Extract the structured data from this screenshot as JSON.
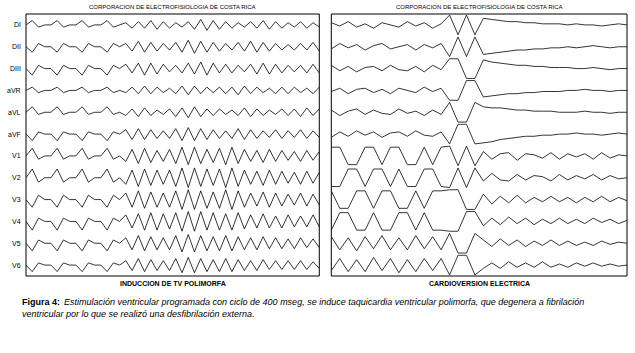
{
  "chart_data": [
    {
      "type": "line",
      "title": "CORPORACION DE ELECTROFISIOLOGIA DE COSTA RICA",
      "xlabel": "INDUCCION DE TV POLIMORFA",
      "color": "#000000",
      "tick_labels": false,
      "grid": false,
      "x": [
        0,
        1,
        2,
        3,
        4,
        5,
        6,
        7,
        8,
        9,
        10,
        11,
        12,
        13,
        14,
        15,
        16,
        17,
        18,
        19,
        20,
        21,
        22,
        23,
        24,
        25,
        26,
        27,
        28,
        29,
        30,
        31,
        32,
        33,
        34,
        35,
        36,
        37,
        38,
        39,
        40,
        41,
        42,
        43,
        44,
        45,
        46,
        47
      ],
      "xlim": [
        0,
        47
      ],
      "ylim": [
        -10,
        10
      ],
      "series": [
        {
          "name": "DI",
          "values": [
            0,
            4,
            -2,
            0,
            0,
            4,
            -2,
            0,
            0,
            4,
            -2,
            0,
            0,
            4,
            -2,
            0,
            2,
            -3,
            3,
            -3,
            4,
            -4,
            3,
            -3,
            2,
            -2,
            3,
            -4,
            5,
            -5,
            4,
            -4,
            3,
            -3,
            2,
            -2,
            3,
            -3,
            4,
            -4,
            3,
            -3,
            2,
            -2,
            3,
            -3,
            2,
            -2
          ]
        },
        {
          "name": "DII",
          "values": [
            0,
            -5,
            3,
            0,
            0,
            -5,
            3,
            0,
            0,
            -5,
            3,
            0,
            0,
            -5,
            3,
            0,
            3,
            -4,
            5,
            -5,
            4,
            -4,
            3,
            -3,
            4,
            -5,
            6,
            -6,
            5,
            -5,
            4,
            -4,
            3,
            -3,
            4,
            -4,
            5,
            -5,
            4,
            -4,
            3,
            -3,
            2,
            -3,
            3,
            -3,
            4,
            -4
          ]
        },
        {
          "name": "DIII",
          "values": [
            0,
            -6,
            3,
            0,
            0,
            -6,
            3,
            0,
            0,
            -6,
            3,
            0,
            0,
            -6,
            3,
            0,
            4,
            -4,
            5,
            -6,
            5,
            -5,
            4,
            -3,
            3,
            -4,
            5,
            -5,
            6,
            -6,
            5,
            -4,
            4,
            -4,
            3,
            -3,
            4,
            -5,
            5,
            -5,
            4,
            -4,
            3,
            -3,
            3,
            -4,
            4,
            -4
          ]
        },
        {
          "name": "aVR",
          "values": [
            0,
            3,
            -2,
            0,
            0,
            3,
            -2,
            0,
            0,
            3,
            -2,
            0,
            0,
            3,
            -2,
            0,
            -2,
            3,
            -3,
            4,
            -3,
            3,
            -2,
            2,
            -3,
            4,
            -4,
            4,
            -3,
            3,
            -2,
            3,
            -3,
            3,
            -4,
            4,
            -3,
            3,
            -2,
            2,
            -3,
            3,
            -3,
            3,
            -2,
            2,
            -3,
            3
          ]
        },
        {
          "name": "aVL",
          "values": [
            0,
            5,
            -2,
            0,
            0,
            5,
            -2,
            0,
            0,
            5,
            -2,
            0,
            0,
            5,
            -2,
            0,
            -3,
            3,
            -4,
            4,
            -3,
            2,
            -2,
            3,
            -4,
            4,
            -5,
            5,
            -4,
            3,
            -3,
            3,
            -2,
            2,
            -3,
            4,
            -4,
            3,
            -3,
            2,
            -2,
            3,
            -3,
            3,
            -4,
            4,
            -3,
            3
          ]
        },
        {
          "name": "aVF",
          "values": [
            0,
            -6,
            2,
            0,
            0,
            -6,
            2,
            0,
            0,
            -6,
            2,
            0,
            0,
            -6,
            2,
            0,
            4,
            -5,
            5,
            -5,
            4,
            -4,
            3,
            -4,
            5,
            -6,
            6,
            -6,
            5,
            -5,
            4,
            -4,
            3,
            -4,
            5,
            -5,
            4,
            -4,
            3,
            -3,
            4,
            -4,
            3,
            -3,
            4,
            -4,
            3,
            -3
          ]
        },
        {
          "name": "V1",
          "values": [
            0,
            7,
            -3,
            0,
            0,
            7,
            -3,
            0,
            0,
            7,
            -3,
            0,
            0,
            7,
            -3,
            0,
            -5,
            6,
            -7,
            7,
            -6,
            5,
            -5,
            6,
            -7,
            8,
            -8,
            8,
            -7,
            6,
            -6,
            7,
            -8,
            8,
            -7,
            6,
            -5,
            5,
            -6,
            6,
            -5,
            5,
            -4,
            4,
            -5,
            5,
            -4,
            4
          ]
        },
        {
          "name": "V2",
          "values": [
            0,
            8,
            -4,
            0,
            0,
            8,
            -4,
            0,
            0,
            8,
            -4,
            0,
            0,
            8,
            -4,
            0,
            -6,
            7,
            -8,
            8,
            -7,
            7,
            -6,
            7,
            -8,
            9,
            -9,
            9,
            -8,
            8,
            -7,
            8,
            -9,
            9,
            -8,
            7,
            -6,
            6,
            -7,
            7,
            -6,
            6,
            -5,
            5,
            -6,
            6,
            -5,
            5
          ]
        },
        {
          "name": "V3",
          "values": [
            0,
            -7,
            4,
            0,
            0,
            -7,
            4,
            0,
            0,
            -7,
            4,
            0,
            0,
            -7,
            4,
            0,
            6,
            -7,
            8,
            -8,
            7,
            -7,
            6,
            -7,
            8,
            -9,
            9,
            -9,
            8,
            -8,
            7,
            -8,
            9,
            -9,
            8,
            -7,
            6,
            -6,
            7,
            -7,
            6,
            -6,
            5,
            -5,
            6,
            -6,
            5,
            -5
          ]
        },
        {
          "name": "V4",
          "values": [
            0,
            -8,
            3,
            0,
            0,
            -8,
            3,
            0,
            0,
            -8,
            3,
            0,
            0,
            -8,
            3,
            0,
            6,
            -6,
            7,
            -8,
            8,
            -8,
            7,
            -7,
            8,
            -9,
            9,
            -9,
            9,
            -8,
            8,
            -8,
            7,
            -8,
            8,
            -7,
            6,
            -6,
            7,
            -6,
            5,
            -6,
            6,
            -5,
            5,
            -5,
            6,
            -5
          ]
        },
        {
          "name": "V5",
          "values": [
            0,
            -7,
            3,
            0,
            0,
            -7,
            3,
            0,
            0,
            -7,
            3,
            0,
            0,
            -7,
            3,
            0,
            5,
            -6,
            7,
            -7,
            6,
            -6,
            5,
            -6,
            7,
            -8,
            8,
            -8,
            7,
            -7,
            6,
            -7,
            7,
            -7,
            6,
            -6,
            5,
            -6,
            6,
            -5,
            5,
            -5,
            4,
            -5,
            5,
            -4,
            4,
            -4
          ]
        },
        {
          "name": "V6",
          "values": [
            0,
            -6,
            2,
            0,
            0,
            -6,
            2,
            0,
            0,
            -6,
            2,
            0,
            0,
            -6,
            2,
            0,
            4,
            -5,
            6,
            -6,
            5,
            -5,
            4,
            -5,
            6,
            -7,
            7,
            -7,
            6,
            -6,
            5,
            -6,
            6,
            -6,
            5,
            -5,
            4,
            -5,
            5,
            -4,
            4,
            -4,
            4,
            -4,
            4,
            -4,
            3,
            -3
          ]
        }
      ]
    },
    {
      "type": "line",
      "title": "CORPORACION DE ELECTROFISIOLOGIA DE COSTA RICA",
      "xlabel": "CARDIOVERSION ELECTRICA",
      "color": "#000000",
      "tick_labels": false,
      "grid": false,
      "x": [
        0,
        1,
        2,
        3,
        4,
        5,
        6,
        7,
        8,
        9,
        10,
        11,
        12,
        13,
        14,
        15,
        16,
        17,
        18,
        19,
        20,
        21,
        22,
        23,
        24,
        25,
        26,
        27,
        28,
        29,
        30,
        31,
        32,
        33,
        34,
        35
      ],
      "xlim": [
        0,
        35
      ],
      "ylim": [
        -10,
        10
      ],
      "series": [
        {
          "values": [
            2,
            -1,
            3,
            -2,
            1,
            -3,
            2,
            0,
            -2,
            3,
            -1,
            2,
            -3,
            1,
            9,
            -9,
            9,
            -9,
            6,
            5,
            4,
            3,
            3,
            2,
            2,
            1,
            1,
            1,
            0,
            1,
            0,
            0,
            -1,
            0,
            1,
            0
          ]
        },
        {
          "values": [
            -2,
            3,
            -1,
            2,
            -3,
            1,
            3,
            -2,
            0,
            2,
            -3,
            2,
            -1,
            3,
            -9,
            9,
            -9,
            9,
            -7,
            -6,
            -5,
            -4,
            -3,
            -3,
            -2,
            -2,
            -1,
            -1,
            0,
            -1,
            0,
            1,
            0,
            -1,
            0,
            0
          ]
        },
        {
          "values": [
            3,
            -2,
            2,
            -3,
            1,
            2,
            -2,
            3,
            -1,
            -2,
            2,
            -3,
            3,
            -1,
            9,
            9,
            -9,
            -9,
            8,
            6,
            5,
            4,
            3,
            3,
            2,
            2,
            1,
            1,
            1,
            0,
            0,
            1,
            0,
            -1,
            0,
            0
          ]
        },
        {
          "values": [
            -1,
            2,
            -3,
            1,
            2,
            -2,
            1,
            -3,
            2,
            0,
            -2,
            3,
            -1,
            2,
            -9,
            -9,
            9,
            9,
            -6,
            -5,
            -4,
            -3,
            -3,
            -2,
            -2,
            -1,
            -1,
            -1,
            0,
            0,
            1,
            0,
            0,
            -1,
            0,
            0
          ]
        },
        {
          "values": [
            2,
            -3,
            1,
            3,
            -2,
            2,
            -1,
            -2,
            3,
            -1,
            1,
            -3,
            2,
            -2,
            9,
            -9,
            -9,
            9,
            5,
            4,
            4,
            3,
            2,
            2,
            1,
            1,
            1,
            0,
            0,
            0,
            1,
            0,
            0,
            -1,
            0,
            0
          ]
        },
        {
          "values": [
            -3,
            2,
            -2,
            3,
            -1,
            2,
            -3,
            1,
            2,
            -2,
            3,
            -1,
            -2,
            2,
            -9,
            9,
            9,
            -9,
            -8,
            -7,
            -5,
            -4,
            -3,
            -2,
            -2,
            -1,
            -1,
            0,
            0,
            1,
            0,
            0,
            -1,
            0,
            1,
            0
          ]
        },
        {
          "values": [
            8,
            8,
            -8,
            -8,
            8,
            8,
            -8,
            8,
            8,
            -8,
            -8,
            8,
            -8,
            8,
            9,
            -9,
            9,
            -9,
            4,
            -3,
            2,
            3,
            -4,
            2,
            1,
            -2,
            3,
            -3,
            2,
            -1,
            2,
            -3,
            3,
            -2,
            1,
            0
          ]
        },
        {
          "values": [
            -8,
            -8,
            8,
            8,
            -8,
            8,
            8,
            -8,
            8,
            -8,
            -8,
            8,
            8,
            -8,
            -9,
            9,
            -9,
            9,
            -3,
            4,
            -2,
            -3,
            3,
            -2,
            2,
            1,
            -3,
            3,
            -2,
            2,
            -1,
            3,
            -2,
            2,
            -1,
            0
          ]
        },
        {
          "values": [
            8,
            -8,
            -8,
            8,
            8,
            -8,
            8,
            8,
            -8,
            -8,
            8,
            -8,
            8,
            8,
            9,
            9,
            -9,
            -9,
            5,
            -4,
            3,
            -3,
            4,
            -3,
            2,
            -2,
            3,
            -2,
            2,
            -3,
            2,
            -2,
            3,
            -2,
            2,
            -1
          ]
        },
        {
          "values": [
            -8,
            8,
            8,
            -8,
            -8,
            8,
            -8,
            -8,
            8,
            8,
            -8,
            8,
            -8,
            -8,
            -9,
            -9,
            9,
            9,
            -4,
            3,
            -3,
            4,
            -2,
            3,
            -3,
            2,
            -2,
            3,
            -2,
            2,
            -2,
            3,
            -1,
            2,
            -2,
            1
          ]
        },
        {
          "values": [
            6,
            -6,
            5,
            -7,
            6,
            -5,
            7,
            -6,
            5,
            -6,
            7,
            -5,
            6,
            -6,
            9,
            -9,
            -9,
            9,
            3,
            -3,
            4,
            -2,
            3,
            -3,
            2,
            -2,
            3,
            -2,
            2,
            -2,
            1,
            -2,
            2,
            -1,
            1,
            0
          ]
        },
        {
          "values": [
            -5,
            6,
            -6,
            5,
            -6,
            7,
            -5,
            6,
            -7,
            5,
            -6,
            6,
            -5,
            6,
            -9,
            9,
            9,
            -9,
            -3,
            2,
            -3,
            3,
            -2,
            2,
            -2,
            3,
            -2,
            1,
            -2,
            2,
            -1,
            2,
            -1,
            1,
            -1,
            0
          ]
        }
      ]
    }
  ],
  "caption": {
    "label": "Figura 4:",
    "text": "Estimulación ventricular programada con ciclo de 400 mseg, se induce taquicardia ventricular polimorfa, que degenera a fibrilación ventricular por lo que se realizó una desfibrilación externa."
  }
}
